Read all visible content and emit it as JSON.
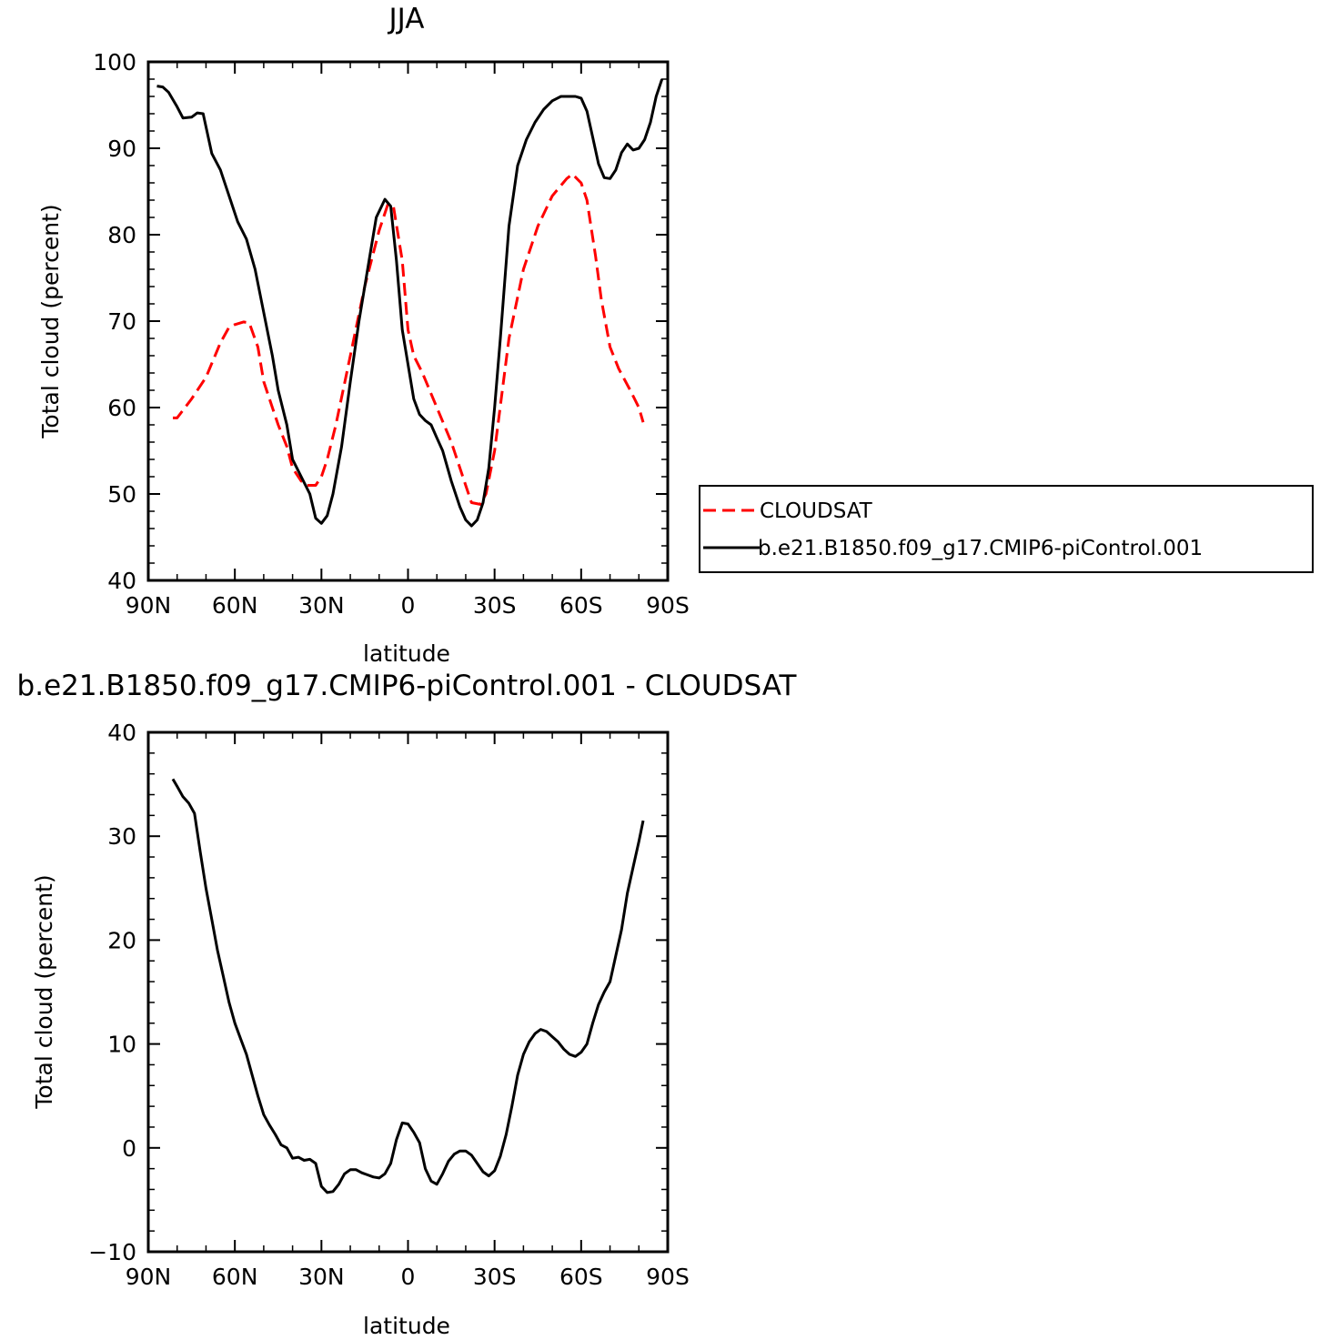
{
  "chart_data": [
    {
      "type": "line",
      "title": "JJA",
      "xlabel": "latitude",
      "ylabel": "Total cloud (percent)",
      "xlim": [
        -90,
        90
      ],
      "ylim": [
        40,
        100
      ],
      "xticks": [
        -90,
        -60,
        -30,
        0,
        30,
        60,
        90
      ],
      "xtick_labels": [
        "90N",
        "60N",
        "30N",
        "0",
        "30S",
        "60S",
        "90S"
      ],
      "yticks": [
        40,
        50,
        60,
        70,
        80,
        90,
        100
      ],
      "ytick_labels": [
        "40",
        "50",
        "60",
        "70",
        "80",
        "90",
        "100"
      ],
      "legend_position": "right, outside",
      "grid": false,
      "series": [
        {
          "name": "CLOUDSAT",
          "color": "#ff0000",
          "dash": "dashed",
          "x": [
            -81.5,
            -80,
            -75,
            -70,
            -65,
            -62,
            -60,
            -57,
            -55,
            -52,
            -50,
            -47,
            -45,
            -42,
            -40,
            -37,
            -35,
            -32,
            -30,
            -28,
            -25,
            -20,
            -15,
            -10,
            -7,
            -5,
            -2,
            0,
            2,
            5,
            10,
            15,
            20,
            22,
            25,
            27,
            30,
            35,
            40,
            45,
            50,
            55,
            57,
            60,
            62,
            65,
            67,
            70,
            73,
            77,
            80,
            81.5
          ],
          "y": [
            58.8,
            58.8,
            61,
            63.5,
            67.5,
            69.3,
            69.6,
            69.9,
            69.8,
            67,
            63,
            60,
            58,
            55.5,
            53,
            51.5,
            51,
            51,
            52,
            54,
            58,
            66,
            74,
            80.5,
            83.5,
            83.2,
            77,
            69,
            66,
            64,
            60,
            56,
            51,
            49,
            48.8,
            50,
            55,
            68,
            76,
            81,
            84.5,
            86.5,
            87,
            86,
            84,
            77.5,
            72.5,
            67,
            64.5,
            62,
            60,
            58.3
          ]
        },
        {
          "name": "b.e21.B1850.f09_g17.CMIP6-piControl.001",
          "color": "#000000",
          "dash": "solid",
          "x": [
            -87,
            -85,
            -83,
            -80,
            -78,
            -75,
            -73,
            -71,
            -68,
            -65,
            -62,
            -59,
            -56,
            -53,
            -50,
            -47,
            -45,
            -42,
            -40,
            -37,
            -34,
            -32,
            -30,
            -28,
            -26,
            -23,
            -20,
            -17,
            -14,
            -11,
            -8,
            -6,
            -4,
            -2,
            0,
            2,
            4,
            6,
            8,
            10,
            12,
            15,
            18,
            20,
            22,
            24,
            26,
            28,
            30,
            32,
            35,
            38,
            41,
            44,
            47,
            50,
            53,
            56,
            58,
            60,
            62,
            64,
            66,
            68,
            70,
            72,
            74,
            76,
            78,
            80,
            82,
            84,
            86,
            88
          ],
          "y": [
            97.2,
            97.1,
            96.5,
            94.8,
            93.5,
            93.6,
            94.1,
            94.0,
            89.4,
            87.5,
            84.5,
            81.5,
            79.5,
            76,
            71,
            66,
            62,
            58,
            54,
            52,
            50,
            47.2,
            46.6,
            47.5,
            50,
            55.5,
            63,
            70,
            76,
            82,
            84.1,
            83.3,
            77,
            69,
            65,
            61,
            59.2,
            58.5,
            58,
            56.5,
            55,
            51.5,
            48.5,
            47,
            46.3,
            47,
            49,
            53,
            60,
            68,
            81,
            88,
            91,
            93,
            94.5,
            95.5,
            96,
            96,
            96,
            95.8,
            94.3,
            91.3,
            88.2,
            86.6,
            86.5,
            87.5,
            89.5,
            90.5,
            89.8,
            90,
            91,
            93,
            96,
            98
          ]
        }
      ]
    },
    {
      "type": "line",
      "title": "b.e21.B1850.f09_g17.CMIP6-piControl.001  -  CLOUDSAT",
      "xlabel": "latitude",
      "ylabel": "Total cloud (percent)",
      "xlim": [
        -90,
        90
      ],
      "ylim": [
        -10,
        40
      ],
      "xticks": [
        -90,
        -60,
        -30,
        0,
        30,
        60,
        90
      ],
      "xtick_labels": [
        "90N",
        "60N",
        "30N",
        "0",
        "30S",
        "60S",
        "90S"
      ],
      "yticks": [
        -10,
        0,
        10,
        20,
        30,
        40
      ],
      "ytick_labels": [
        "−10",
        "0",
        "10",
        "20",
        "30",
        "40"
      ],
      "grid": false,
      "series": [
        {
          "color": "#000000",
          "dash": "solid",
          "x": [
            -81.5,
            -80,
            -78,
            -76,
            -74,
            -72,
            -70,
            -68,
            -66,
            -64,
            -62,
            -60,
            -58,
            -56,
            -54,
            -52,
            -50,
            -48,
            -46,
            -44,
            -42,
            -40,
            -38,
            -36,
            -34,
            -32,
            -30,
            -28,
            -26,
            -24,
            -22,
            -20,
            -18,
            -16,
            -14,
            -12,
            -10,
            -8,
            -6,
            -4,
            -2,
            0,
            2,
            4,
            6,
            8,
            10,
            12,
            14,
            16,
            18,
            20,
            22,
            24,
            26,
            28,
            30,
            32,
            34,
            36,
            38,
            40,
            42,
            44,
            46,
            48,
            50,
            52,
            54,
            56,
            58,
            60,
            62,
            64,
            66,
            68,
            70,
            72,
            74,
            76,
            78,
            80,
            81.5
          ],
          "y": [
            35.5,
            34.8,
            33.8,
            33.2,
            32.2,
            28.5,
            25,
            22,
            19,
            16.5,
            14,
            12,
            10.5,
            9,
            7,
            5,
            3.2,
            2.2,
            1.3,
            0.3,
            0,
            -1,
            -0.9,
            -1.2,
            -1.1,
            -1.5,
            -3.7,
            -4.3,
            -4.2,
            -3.5,
            -2.5,
            -2.1,
            -2.1,
            -2.4,
            -2.6,
            -2.8,
            -2.9,
            -2.5,
            -1.5,
            0.8,
            2.4,
            2.3,
            1.5,
            0.5,
            -2,
            -3.2,
            -3.5,
            -2.5,
            -1.3,
            -0.6,
            -0.3,
            -0.3,
            -0.7,
            -1.5,
            -2.3,
            -2.7,
            -2.2,
            -0.8,
            1.3,
            4,
            7,
            9,
            10.2,
            11,
            11.4,
            11.2,
            10.7,
            10.2,
            9.5,
            9,
            8.8,
            9.2,
            10,
            12,
            13.8,
            15,
            16,
            18.5,
            21,
            24.5,
            27,
            29.5,
            31.5
          ]
        }
      ]
    }
  ]
}
